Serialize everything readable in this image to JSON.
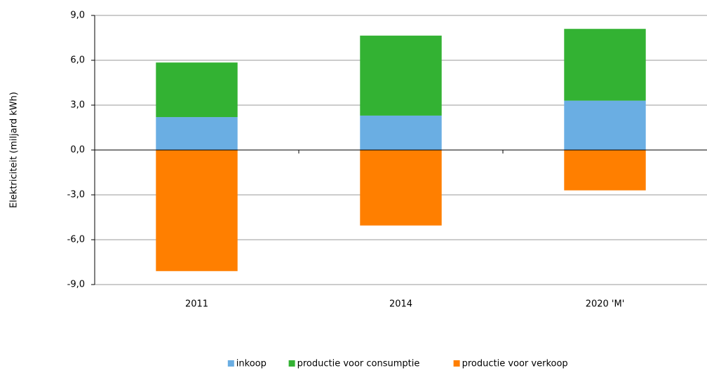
{
  "chart_data": {
    "type": "stacked_bar",
    "y_label": "Elektriciteit (miljard kWh)",
    "categories": [
      "2011",
      "2014",
      "2020 'M'"
    ],
    "series": [
      {
        "name": "inkoop",
        "color": "#6aaee3",
        "values": [
          2.2,
          2.3,
          3.3
        ]
      },
      {
        "name": "productie voor consumptie",
        "color": "#33b233",
        "values": [
          3.65,
          5.35,
          4.8
        ]
      },
      {
        "name": "productie voor verkoop",
        "color": "#ff7f00",
        "values": [
          -8.1,
          -5.05,
          -2.7
        ]
      }
    ],
    "ylim": [
      -9,
      9
    ],
    "yticks": [
      {
        "value": -9,
        "label": "-9,0"
      },
      {
        "value": -6,
        "label": "-6,0"
      },
      {
        "value": -3,
        "label": "-3,0"
      },
      {
        "value": 0,
        "label": "0,0"
      },
      {
        "value": 3,
        "label": "3,0"
      },
      {
        "value": 6,
        "label": "6,0"
      },
      {
        "value": 9,
        "label": "9,0"
      }
    ],
    "grid": true,
    "legend": "bottom"
  }
}
